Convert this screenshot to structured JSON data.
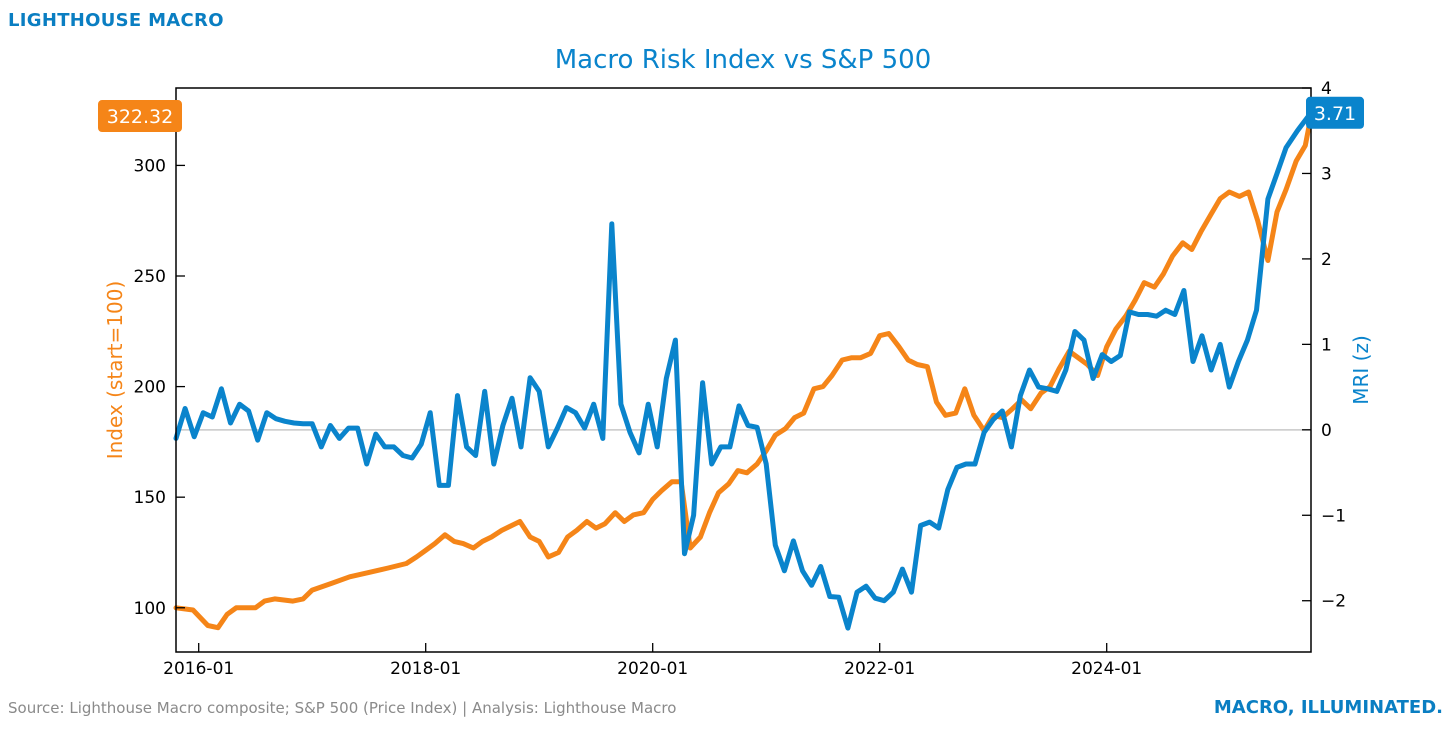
{
  "header": {
    "brand": "LIGHTHOUSE MACRO"
  },
  "footer": {
    "source": "Source: Lighthouse Macro composite; S&P 500 (Price Index) | Analysis: Lighthouse Macro",
    "tagline": "MACRO, ILLUMINATED."
  },
  "colors": {
    "orange": "#f58518",
    "blue": "#0a84cc",
    "zero_line": "#c8c8c8",
    "axis": "#000000"
  },
  "chart_data": {
    "type": "line",
    "title": "Macro Risk Index vs S&P 500",
    "xlabel": "",
    "x_range": [
      2015.8,
      2025.8
    ],
    "x_ticks": [
      {
        "value": 2016.0,
        "label": "2016-01"
      },
      {
        "value": 2018.0,
        "label": "2018-01"
      },
      {
        "value": 2020.0,
        "label": "2020-01"
      },
      {
        "value": 2022.0,
        "label": "2022-01"
      },
      {
        "value": 2024.0,
        "label": "2024-01"
      }
    ],
    "left_axis": {
      "label": "Index (start=100)",
      "ylim": [
        80,
        335
      ],
      "ticks": [
        100,
        150,
        200,
        250,
        300
      ],
      "tick_labels": [
        "100",
        "150",
        "200",
        "250",
        "300"
      ]
    },
    "right_axis": {
      "label": "MRI (z)",
      "ylim": [
        -2.6,
        4.0
      ],
      "ticks": [
        -2,
        -1,
        0,
        1,
        2,
        3,
        4
      ],
      "tick_labels": [
        "−2",
        "−1",
        "0",
        "1",
        "2",
        "3",
        "4"
      ]
    },
    "series": [
      {
        "name": "S&P 500 (Index, start=100)",
        "axis": "left",
        "end_label": "322.32",
        "points": [
          [
            2015.8,
            100
          ],
          [
            2015.95,
            99
          ],
          [
            2016.08,
            92
          ],
          [
            2016.17,
            91
          ],
          [
            2016.25,
            97
          ],
          [
            2016.33,
            100
          ],
          [
            2016.5,
            100
          ],
          [
            2016.58,
            103
          ],
          [
            2016.67,
            104
          ],
          [
            2016.83,
            103
          ],
          [
            2016.92,
            104
          ],
          [
            2017.0,
            108
          ],
          [
            2017.17,
            111
          ],
          [
            2017.33,
            114
          ],
          [
            2017.5,
            116
          ],
          [
            2017.67,
            118
          ],
          [
            2017.83,
            120
          ],
          [
            2017.92,
            123
          ],
          [
            2018.0,
            126
          ],
          [
            2018.08,
            129
          ],
          [
            2018.17,
            133
          ],
          [
            2018.25,
            130
          ],
          [
            2018.33,
            129
          ],
          [
            2018.42,
            127
          ],
          [
            2018.5,
            130
          ],
          [
            2018.58,
            132
          ],
          [
            2018.67,
            135
          ],
          [
            2018.83,
            139
          ],
          [
            2018.92,
            132
          ],
          [
            2019.0,
            130
          ],
          [
            2019.08,
            123
          ],
          [
            2019.17,
            125
          ],
          [
            2019.25,
            132
          ],
          [
            2019.33,
            135
          ],
          [
            2019.42,
            139
          ],
          [
            2019.5,
            136
          ],
          [
            2019.58,
            138
          ],
          [
            2019.67,
            143
          ],
          [
            2019.75,
            139
          ],
          [
            2019.83,
            142
          ],
          [
            2019.92,
            143
          ],
          [
            2020.0,
            149
          ],
          [
            2020.08,
            153
          ],
          [
            2020.17,
            157
          ],
          [
            2020.25,
            157
          ],
          [
            2020.33,
            127
          ],
          [
            2020.42,
            132
          ],
          [
            2020.5,
            143
          ],
          [
            2020.58,
            152
          ],
          [
            2020.67,
            156
          ],
          [
            2020.75,
            162
          ],
          [
            2020.83,
            161
          ],
          [
            2020.92,
            165
          ],
          [
            2021.0,
            171
          ],
          [
            2021.08,
            178
          ],
          [
            2021.17,
            181
          ],
          [
            2021.25,
            186
          ],
          [
            2021.33,
            188
          ],
          [
            2021.42,
            199
          ],
          [
            2021.5,
            200
          ],
          [
            2021.58,
            205
          ],
          [
            2021.67,
            212
          ],
          [
            2021.75,
            213
          ],
          [
            2021.83,
            213
          ],
          [
            2021.92,
            215
          ],
          [
            2022.0,
            223
          ],
          [
            2022.08,
            224
          ],
          [
            2022.17,
            218
          ],
          [
            2022.25,
            212
          ],
          [
            2022.33,
            210
          ],
          [
            2022.42,
            209
          ],
          [
            2022.5,
            193
          ],
          [
            2022.58,
            187
          ],
          [
            2022.67,
            188
          ],
          [
            2022.75,
            199
          ],
          [
            2022.83,
            187
          ],
          [
            2022.92,
            180
          ],
          [
            2023.0,
            187
          ],
          [
            2023.08,
            186
          ],
          [
            2023.17,
            190
          ],
          [
            2023.25,
            194
          ],
          [
            2023.33,
            190
          ],
          [
            2023.42,
            197
          ],
          [
            2023.5,
            200
          ],
          [
            2023.58,
            208
          ],
          [
            2023.67,
            216
          ],
          [
            2023.75,
            213
          ],
          [
            2023.83,
            210
          ],
          [
            2023.92,
            205
          ],
          [
            2024.0,
            218
          ],
          [
            2024.08,
            226
          ],
          [
            2024.17,
            232
          ],
          [
            2024.25,
            239
          ],
          [
            2024.33,
            247
          ],
          [
            2024.42,
            245
          ],
          [
            2024.5,
            251
          ],
          [
            2024.58,
            259
          ],
          [
            2024.67,
            265
          ],
          [
            2024.75,
            262
          ],
          [
            2024.83,
            270
          ],
          [
            2024.92,
            278
          ],
          [
            2025.0,
            285
          ],
          [
            2025.08,
            288
          ],
          [
            2025.17,
            286
          ],
          [
            2025.25,
            288
          ],
          [
            2025.33,
            275
          ],
          [
            2025.42,
            257
          ],
          [
            2025.5,
            279
          ],
          [
            2025.58,
            289
          ],
          [
            2025.67,
            302
          ],
          [
            2025.75,
            309
          ],
          [
            2025.8,
            322.32
          ]
        ]
      },
      {
        "name": "Macro Risk Index (z)",
        "axis": "right",
        "end_label": "3.71",
        "points": [
          [
            2015.8,
            -0.1
          ],
          [
            2015.88,
            0.25
          ],
          [
            2015.96,
            -0.08
          ],
          [
            2016.04,
            0.2
          ],
          [
            2016.12,
            0.15
          ],
          [
            2016.2,
            0.48
          ],
          [
            2016.28,
            0.08
          ],
          [
            2016.36,
            0.3
          ],
          [
            2016.44,
            0.22
          ],
          [
            2016.52,
            -0.12
          ],
          [
            2016.6,
            0.2
          ],
          [
            2016.68,
            0.13
          ],
          [
            2016.76,
            0.1
          ],
          [
            2016.84,
            0.08
          ],
          [
            2016.92,
            0.07
          ],
          [
            2017.0,
            0.07
          ],
          [
            2017.08,
            -0.2
          ],
          [
            2017.16,
            0.05
          ],
          [
            2017.24,
            -0.1
          ],
          [
            2017.32,
            0.02
          ],
          [
            2017.4,
            0.02
          ],
          [
            2017.48,
            -0.4
          ],
          [
            2017.56,
            -0.05
          ],
          [
            2017.64,
            -0.2
          ],
          [
            2017.72,
            -0.2
          ],
          [
            2017.8,
            -0.3
          ],
          [
            2017.88,
            -0.33
          ],
          [
            2017.96,
            -0.17
          ],
          [
            2018.04,
            0.2
          ],
          [
            2018.12,
            -0.65
          ],
          [
            2018.2,
            -0.65
          ],
          [
            2018.28,
            0.4
          ],
          [
            2018.36,
            -0.2
          ],
          [
            2018.44,
            -0.3
          ],
          [
            2018.52,
            0.45
          ],
          [
            2018.6,
            -0.4
          ],
          [
            2018.68,
            0.05
          ],
          [
            2018.76,
            0.37
          ],
          [
            2018.84,
            -0.2
          ],
          [
            2018.92,
            0.61
          ],
          [
            2019.0,
            0.45
          ],
          [
            2019.08,
            -0.2
          ],
          [
            2019.16,
            0.02
          ],
          [
            2019.24,
            0.26
          ],
          [
            2019.32,
            0.2
          ],
          [
            2019.4,
            0.02
          ],
          [
            2019.48,
            0.3
          ],
          [
            2019.56,
            -0.1
          ],
          [
            2019.64,
            2.41
          ],
          [
            2019.72,
            0.3
          ],
          [
            2019.8,
            -0.03
          ],
          [
            2019.88,
            -0.27
          ],
          [
            2019.96,
            0.3
          ],
          [
            2020.04,
            -0.2
          ],
          [
            2020.12,
            0.6
          ],
          [
            2020.2,
            1.05
          ],
          [
            2020.28,
            -1.45
          ],
          [
            2020.36,
            -1.0
          ],
          [
            2020.44,
            0.55
          ],
          [
            2020.52,
            -0.4
          ],
          [
            2020.6,
            -0.2
          ],
          [
            2020.68,
            -0.2
          ],
          [
            2020.76,
            0.28
          ],
          [
            2020.84,
            0.05
          ],
          [
            2020.92,
            0.03
          ],
          [
            2021.0,
            -0.4
          ],
          [
            2021.08,
            -1.35
          ],
          [
            2021.16,
            -1.65
          ],
          [
            2021.24,
            -1.3
          ],
          [
            2021.32,
            -1.65
          ],
          [
            2021.4,
            -1.82
          ],
          [
            2021.48,
            -1.6
          ],
          [
            2021.56,
            -1.95
          ],
          [
            2021.64,
            -1.96
          ],
          [
            2021.72,
            -2.32
          ],
          [
            2021.8,
            -1.9
          ],
          [
            2021.88,
            -1.83
          ],
          [
            2021.96,
            -1.97
          ],
          [
            2022.04,
            -2.0
          ],
          [
            2022.12,
            -1.9
          ],
          [
            2022.2,
            -1.63
          ],
          [
            2022.28,
            -1.9
          ],
          [
            2022.36,
            -1.12
          ],
          [
            2022.44,
            -1.08
          ],
          [
            2022.52,
            -1.15
          ],
          [
            2022.6,
            -0.7
          ],
          [
            2022.68,
            -0.44
          ],
          [
            2022.76,
            -0.4
          ],
          [
            2022.84,
            -0.4
          ],
          [
            2022.92,
            -0.03
          ],
          [
            2023.0,
            0.12
          ],
          [
            2023.08,
            0.22
          ],
          [
            2023.16,
            -0.2
          ],
          [
            2023.24,
            0.4
          ],
          [
            2023.32,
            0.7
          ],
          [
            2023.4,
            0.5
          ],
          [
            2023.48,
            0.48
          ],
          [
            2023.56,
            0.45
          ],
          [
            2023.64,
            0.7
          ],
          [
            2023.72,
            1.15
          ],
          [
            2023.8,
            1.05
          ],
          [
            2023.88,
            0.6
          ],
          [
            2023.96,
            0.88
          ],
          [
            2024.04,
            0.8
          ],
          [
            2024.12,
            0.87
          ],
          [
            2024.2,
            1.38
          ],
          [
            2024.28,
            1.35
          ],
          [
            2024.36,
            1.35
          ],
          [
            2024.44,
            1.33
          ],
          [
            2024.52,
            1.4
          ],
          [
            2024.6,
            1.35
          ],
          [
            2024.68,
            1.63
          ],
          [
            2024.76,
            0.8
          ],
          [
            2024.84,
            1.1
          ],
          [
            2024.92,
            0.7
          ],
          [
            2025.0,
            1.0
          ],
          [
            2025.08,
            0.5
          ],
          [
            2025.16,
            0.8
          ],
          [
            2025.24,
            1.05
          ],
          [
            2025.32,
            1.4
          ],
          [
            2025.42,
            2.7
          ],
          [
            2025.5,
            3.0
          ],
          [
            2025.58,
            3.3
          ],
          [
            2025.68,
            3.5
          ],
          [
            2025.8,
            3.71
          ]
        ]
      }
    ]
  }
}
